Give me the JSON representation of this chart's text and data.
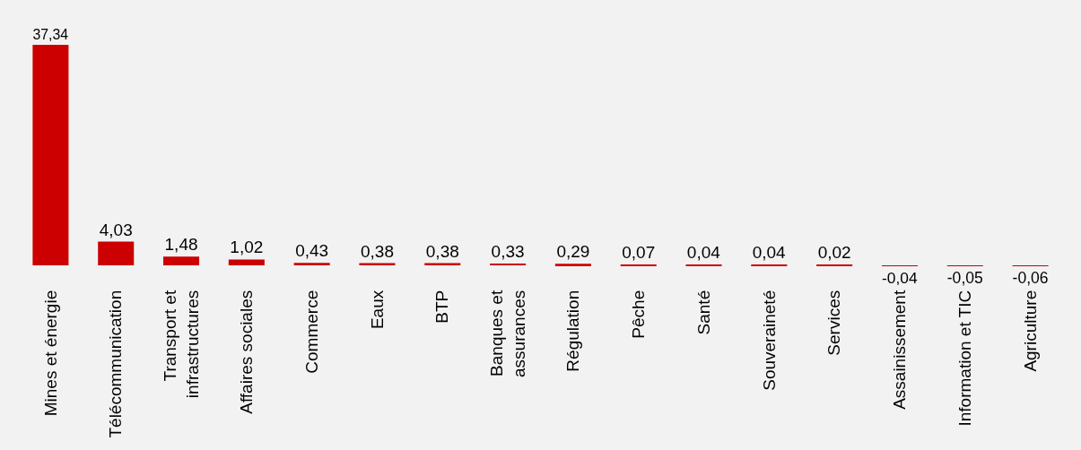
{
  "chart_data": {
    "type": "bar",
    "categories": [
      "Mines et énergie",
      "Télécommunication",
      "Transport et\ninfrastructures",
      "Affaires sociales",
      "Commerce",
      "Eaux",
      "BTP",
      "Banques et\nassurances",
      "Régulation",
      "Pêche",
      "Santé",
      "Souveraineté",
      "Services",
      "Assainissement",
      "Information et TIC",
      "Agriculture"
    ],
    "values": [
      37.34,
      4.03,
      1.48,
      1.02,
      0.43,
      0.38,
      0.38,
      0.33,
      0.29,
      0.07,
      0.04,
      0.04,
      0.02,
      -0.04,
      -0.05,
      -0.06
    ],
    "value_labels": [
      "37,34",
      "4,03",
      "1,48",
      "1,02",
      "0,43",
      "0,38",
      "0,38",
      "0,33",
      "0,29",
      "0,07",
      "0,04",
      "0,04",
      "0,02",
      "-0,04",
      "-0,05",
      "-0,06"
    ],
    "color": "#cc0000"
  }
}
